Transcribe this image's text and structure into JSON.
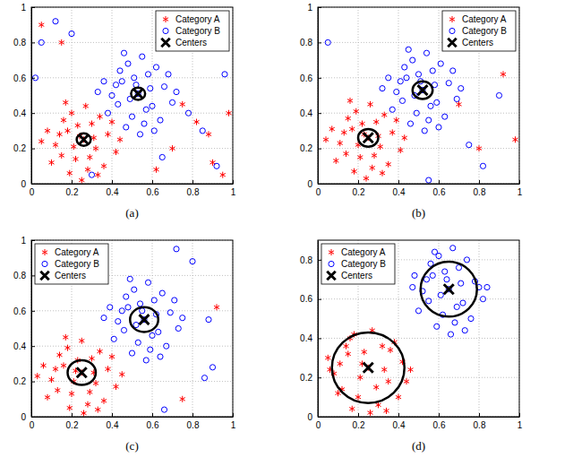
{
  "chart_data": [
    {
      "type": "scatter",
      "title": "(a)",
      "xlim": [
        0,
        1
      ],
      "ylim": [
        0,
        1
      ],
      "xticks": [
        0,
        0.2,
        0.4,
        0.6,
        0.8,
        1
      ],
      "yticks": [
        0,
        0.2,
        0.4,
        0.6,
        0.8,
        1
      ],
      "grid": true,
      "legend": "upper right",
      "series": [
        {
          "name": "Category A",
          "color": "#ff0000",
          "marker": "asterisk",
          "x": [
            0.26,
            0.18,
            0.32,
            0.22,
            0.3,
            0.12,
            0.38,
            0.2,
            0.28,
            0.15,
            0.34,
            0.24,
            0.08,
            0.42,
            0.19,
            0.31,
            0.27,
            0.1,
            0.36,
            0.23,
            0.16,
            0.29,
            0.4,
            0.05,
            0.21,
            0.33,
            0.14,
            0.25,
            0.44,
            0.17,
            0.82,
            0.9,
            0.95,
            0.7,
            0.88,
            0.62,
            0.98,
            0.15,
            0.05,
            0.75
          ],
          "values": [
            0.25,
            0.3,
            0.2,
            0.14,
            0.34,
            0.22,
            0.28,
            0.4,
            0.08,
            0.16,
            0.38,
            0.27,
            0.3,
            0.18,
            0.06,
            0.26,
            0.44,
            0.12,
            0.1,
            0.33,
            0.36,
            0.15,
            0.35,
            0.24,
            0.21,
            0.05,
            0.28,
            0.02,
            0.25,
            0.46,
            0.35,
            0.12,
            0.05,
            0.2,
            0.28,
            0.08,
            0.4,
            0.8,
            0.9,
            0.45
          ]
        },
        {
          "name": "Category B",
          "color": "#0000ff",
          "marker": "circle",
          "x": [
            0.53,
            0.45,
            0.6,
            0.5,
            0.58,
            0.4,
            0.66,
            0.48,
            0.56,
            0.43,
            0.62,
            0.52,
            0.36,
            0.7,
            0.47,
            0.59,
            0.55,
            0.38,
            0.64,
            0.51,
            0.44,
            0.57,
            0.68,
            0.33,
            0.49,
            0.61,
            0.42,
            0.54,
            0.72,
            0.46,
            0.05,
            0.12,
            0.2,
            0.02,
            0.85,
            0.92,
            0.78,
            0.65,
            0.3,
            0.96
          ],
          "values": [
            0.51,
            0.58,
            0.44,
            0.38,
            0.62,
            0.5,
            0.55,
            0.68,
            0.34,
            0.45,
            0.66,
            0.56,
            0.58,
            0.46,
            0.32,
            0.54,
            0.72,
            0.4,
            0.36,
            0.6,
            0.64,
            0.42,
            0.62,
            0.52,
            0.48,
            0.3,
            0.56,
            0.28,
            0.52,
            0.74,
            0.8,
            0.92,
            0.85,
            0.6,
            0.3,
            0.1,
            0.4,
            0.15,
            0.05,
            0.62
          ]
        },
        {
          "name": "Centers",
          "color": "#000000",
          "marker": "x",
          "x": [
            0.26,
            0.53
          ],
          "values": [
            0.25,
            0.51
          ],
          "radius": [
            0.035,
            0.035
          ]
        }
      ]
    },
    {
      "type": "scatter",
      "title": "(b)",
      "xlim": [
        0,
        1
      ],
      "ylim": [
        0,
        1
      ],
      "xticks": [
        0,
        0.2,
        0.4,
        0.6,
        0.8,
        1
      ],
      "yticks": [
        0,
        0.2,
        0.4,
        0.6,
        0.8,
        1
      ],
      "grid": true,
      "legend": "upper right",
      "series": [
        {
          "name": "Category A",
          "color": "#ff0000",
          "marker": "asterisk",
          "x": [
            0.25,
            0.17,
            0.31,
            0.21,
            0.29,
            0.11,
            0.37,
            0.19,
            0.27,
            0.14,
            0.33,
            0.23,
            0.07,
            0.41,
            0.18,
            0.3,
            0.26,
            0.09,
            0.35,
            0.22,
            0.15,
            0.28,
            0.39,
            0.04,
            0.2,
            0.32,
            0.13,
            0.24,
            0.43,
            0.16,
            0.92,
            0.8,
            0.98,
            0.7
          ],
          "values": [
            0.26,
            0.31,
            0.21,
            0.15,
            0.35,
            0.23,
            0.29,
            0.41,
            0.09,
            0.17,
            0.39,
            0.28,
            0.31,
            0.19,
            0.07,
            0.27,
            0.45,
            0.13,
            0.11,
            0.34,
            0.37,
            0.16,
            0.36,
            0.25,
            0.22,
            0.06,
            0.29,
            0.03,
            0.26,
            0.47,
            0.62,
            0.2,
            0.25,
            0.45
          ]
        },
        {
          "name": "Category B",
          "color": "#0000ff",
          "marker": "circle",
          "x": [
            0.52,
            0.44,
            0.59,
            0.49,
            0.57,
            0.39,
            0.65,
            0.47,
            0.55,
            0.42,
            0.61,
            0.51,
            0.35,
            0.69,
            0.46,
            0.58,
            0.54,
            0.37,
            0.63,
            0.5,
            0.43,
            0.56,
            0.67,
            0.32,
            0.48,
            0.6,
            0.41,
            0.53,
            0.71,
            0.45,
            0.05,
            0.9,
            0.75,
            0.82,
            0.55
          ],
          "values": [
            0.53,
            0.6,
            0.46,
            0.4,
            0.64,
            0.52,
            0.57,
            0.7,
            0.36,
            0.47,
            0.68,
            0.58,
            0.6,
            0.48,
            0.34,
            0.56,
            0.74,
            0.42,
            0.38,
            0.62,
            0.66,
            0.44,
            0.64,
            0.54,
            0.5,
            0.32,
            0.58,
            0.3,
            0.54,
            0.76,
            0.8,
            0.5,
            0.22,
            0.1,
            0.02
          ]
        },
        {
          "name": "Centers",
          "color": "#000000",
          "marker": "x",
          "x": [
            0.25,
            0.52
          ],
          "values": [
            0.26,
            0.53
          ],
          "radius": [
            0.05,
            0.05
          ]
        }
      ]
    },
    {
      "type": "scatter",
      "title": "(c)",
      "xlim": [
        0,
        1
      ],
      "ylim": [
        0,
        1
      ],
      "xticks": [
        0,
        0.2,
        0.4,
        0.6,
        0.8,
        1
      ],
      "yticks": [
        0,
        0.2,
        0.4,
        0.6,
        0.8,
        1
      ],
      "grid": true,
      "legend": "upper left",
      "series": [
        {
          "name": "Category A",
          "color": "#ff0000",
          "marker": "asterisk",
          "x": [
            0.25,
            0.16,
            0.32,
            0.2,
            0.3,
            0.1,
            0.38,
            0.18,
            0.28,
            0.13,
            0.34,
            0.22,
            0.06,
            0.42,
            0.19,
            0.31,
            0.25,
            0.08,
            0.36,
            0.23,
            0.14,
            0.29,
            0.4,
            0.03,
            0.21,
            0.33,
            0.12,
            0.26,
            0.45,
            0.17,
            0.75,
            0.92
          ],
          "values": [
            0.25,
            0.29,
            0.19,
            0.13,
            0.33,
            0.21,
            0.27,
            0.39,
            0.07,
            0.15,
            0.37,
            0.26,
            0.29,
            0.17,
            0.05,
            0.25,
            0.43,
            0.11,
            0.09,
            0.32,
            0.35,
            0.14,
            0.34,
            0.23,
            0.2,
            0.04,
            0.27,
            0.02,
            0.24,
            0.45,
            0.1,
            0.62
          ]
        },
        {
          "name": "Category B",
          "color": "#0000ff",
          "marker": "circle",
          "x": [
            0.56,
            0.48,
            0.63,
            0.53,
            0.61,
            0.43,
            0.69,
            0.51,
            0.59,
            0.46,
            0.65,
            0.55,
            0.39,
            0.73,
            0.5,
            0.62,
            0.58,
            0.41,
            0.67,
            0.54,
            0.47,
            0.6,
            0.71,
            0.36,
            0.52,
            0.64,
            0.45,
            0.57,
            0.75,
            0.49,
            0.88,
            0.9,
            0.86,
            0.66,
            0.72,
            0.8
          ],
          "values": [
            0.55,
            0.62,
            0.48,
            0.42,
            0.66,
            0.54,
            0.59,
            0.72,
            0.38,
            0.49,
            0.7,
            0.6,
            0.62,
            0.5,
            0.36,
            0.58,
            0.76,
            0.44,
            0.4,
            0.64,
            0.68,
            0.46,
            0.66,
            0.56,
            0.52,
            0.34,
            0.6,
            0.32,
            0.56,
            0.78,
            0.55,
            0.28,
            0.22,
            0.04,
            0.95,
            0.88
          ]
        },
        {
          "name": "Centers",
          "color": "#000000",
          "marker": "x",
          "x": [
            0.25,
            0.56
          ],
          "values": [
            0.25,
            0.55
          ],
          "radius": [
            0.07,
            0.07
          ]
        }
      ]
    },
    {
      "type": "scatter",
      "title": "(d)",
      "xlim": [
        0,
        1
      ],
      "ylim": [
        0,
        0.9
      ],
      "xticks": [
        0,
        0.2,
        0.4,
        0.6,
        0.8,
        1
      ],
      "yticks": [
        0,
        0.2,
        0.4,
        0.6,
        0.8
      ],
      "grid": true,
      "legend": "upper left",
      "series": [
        {
          "name": "Category A",
          "color": "#ff0000",
          "marker": "asterisk",
          "x": [
            0.25,
            0.15,
            0.35,
            0.2,
            0.32,
            0.08,
            0.42,
            0.18,
            0.3,
            0.12,
            0.38,
            0.22,
            0.05,
            0.44,
            0.17,
            0.33,
            0.27,
            0.1,
            0.4,
            0.23,
            0.14,
            0.29,
            0.36,
            0.06,
            0.21,
            0.34,
            0.11,
            0.26,
            0.46,
            0.16
          ],
          "values": [
            0.25,
            0.32,
            0.18,
            0.1,
            0.36,
            0.22,
            0.28,
            0.42,
            0.06,
            0.14,
            0.38,
            0.27,
            0.3,
            0.18,
            0.04,
            0.24,
            0.44,
            0.12,
            0.1,
            0.33,
            0.36,
            0.15,
            0.34,
            0.24,
            0.2,
            0.03,
            0.27,
            0.02,
            0.24,
            0.4
          ]
        },
        {
          "name": "Category B",
          "color": "#0000ff",
          "marker": "circle",
          "x": [
            0.65,
            0.57,
            0.72,
            0.62,
            0.7,
            0.52,
            0.78,
            0.6,
            0.68,
            0.55,
            0.74,
            0.64,
            0.48,
            0.82,
            0.59,
            0.71,
            0.67,
            0.5,
            0.76,
            0.63,
            0.56,
            0.69,
            0.8,
            0.47,
            0.61,
            0.73,
            0.54,
            0.66,
            0.84,
            0.58
          ],
          "values": [
            0.65,
            0.72,
            0.58,
            0.52,
            0.76,
            0.64,
            0.69,
            0.82,
            0.48,
            0.59,
            0.8,
            0.7,
            0.72,
            0.6,
            0.46,
            0.68,
            0.86,
            0.54,
            0.5,
            0.74,
            0.78,
            0.56,
            0.66,
            0.66,
            0.62,
            0.44,
            0.7,
            0.42,
            0.66,
            0.84
          ]
        },
        {
          "name": "Centers",
          "color": "#000000",
          "marker": "x",
          "x": [
            0.25,
            0.65
          ],
          "values": [
            0.25,
            0.65
          ],
          "radius": [
            0.18,
            0.14
          ]
        }
      ]
    }
  ]
}
